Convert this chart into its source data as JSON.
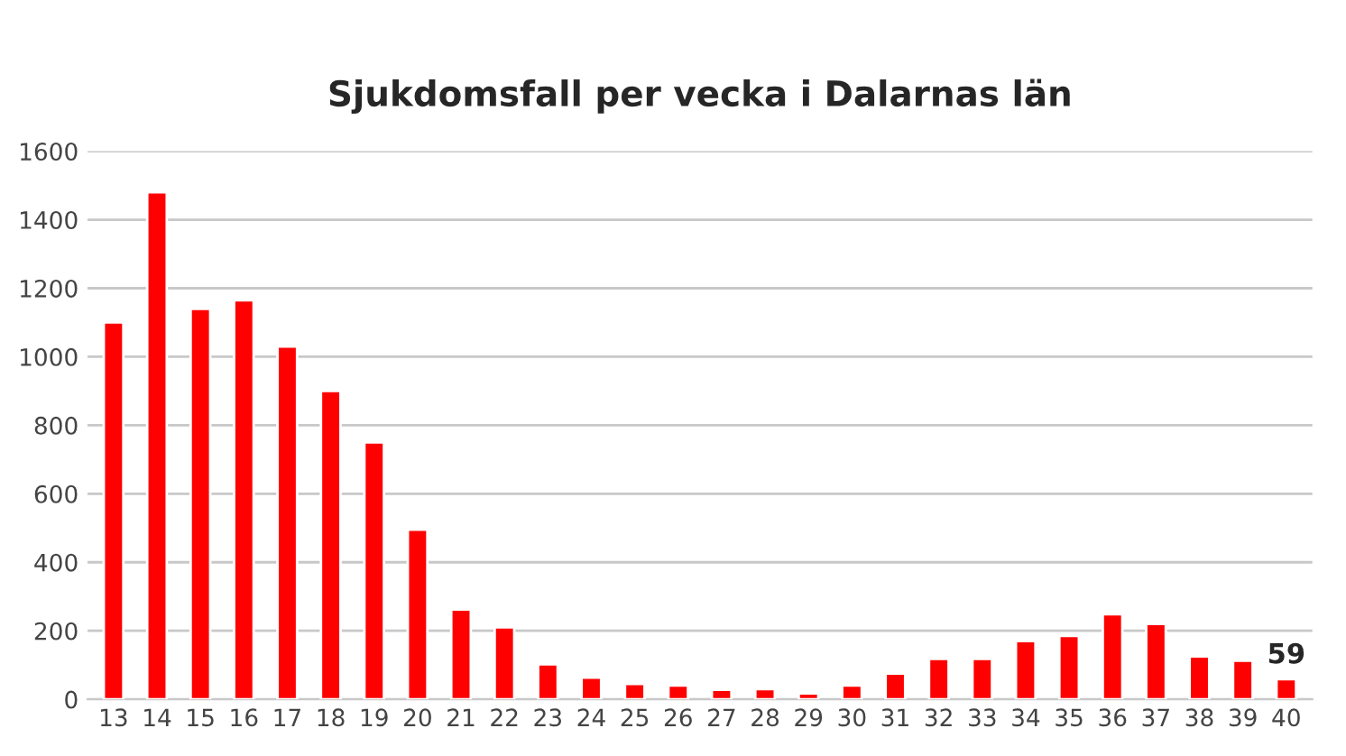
{
  "chart_data": {
    "type": "bar",
    "title": "Sjukdomsfall per vecka i Dalarnas län",
    "categories": [
      "13",
      "14",
      "15",
      "16",
      "17",
      "18",
      "19",
      "20",
      "21",
      "22",
      "23",
      "24",
      "25",
      "26",
      "27",
      "28",
      "29",
      "30",
      "31",
      "32",
      "33",
      "34",
      "35",
      "36",
      "37",
      "38",
      "39",
      "40"
    ],
    "values": [
      1100,
      1480,
      1140,
      1165,
      1030,
      900,
      750,
      495,
      262,
      210,
      102,
      63,
      45,
      40,
      28,
      30,
      17,
      40,
      75,
      118,
      118,
      170,
      185,
      248,
      220,
      125,
      113,
      59
    ],
    "value_labels": [
      null,
      null,
      null,
      null,
      null,
      null,
      null,
      null,
      null,
      null,
      null,
      null,
      null,
      null,
      null,
      null,
      null,
      null,
      null,
      null,
      null,
      null,
      null,
      null,
      null,
      null,
      null,
      "59"
    ],
    "color": "#ff0000",
    "ylim": [
      0,
      1600
    ],
    "yticks": [
      0,
      200,
      400,
      600,
      800,
      1000,
      1200,
      1400,
      1600
    ],
    "grid": "y"
  }
}
